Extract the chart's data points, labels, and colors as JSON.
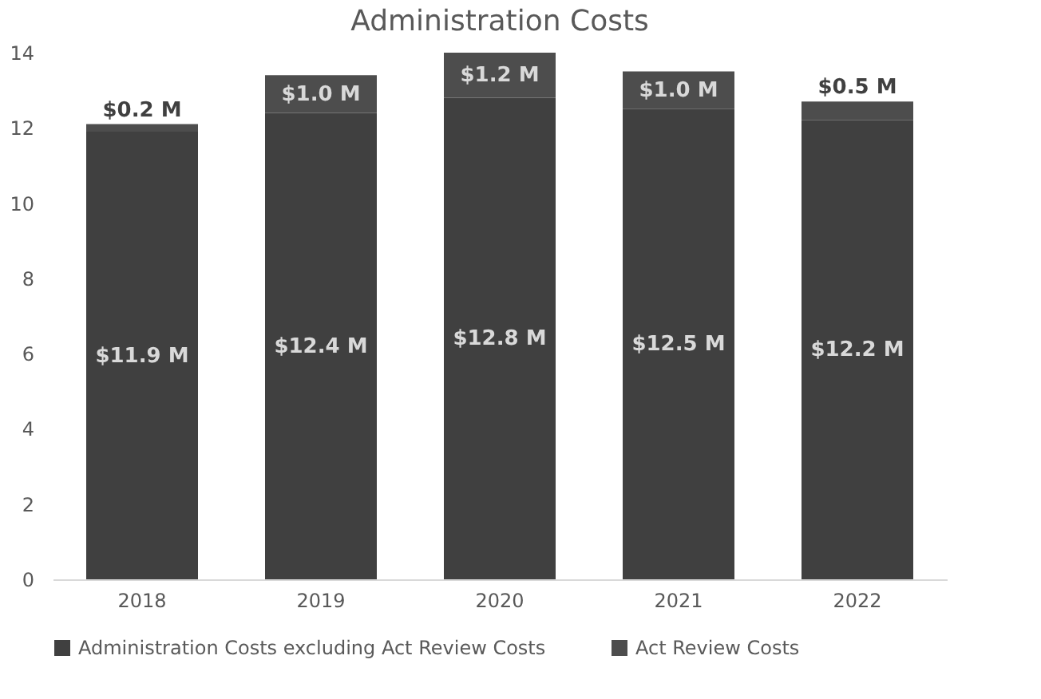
{
  "chart_data": {
    "type": "bar",
    "title": "Administration Costs",
    "stacked": true,
    "categories": [
      "2018",
      "2019",
      "2020",
      "2021",
      "2022"
    ],
    "series": [
      {
        "name": "Administration Costs excluding Act Review Costs",
        "color": "#404040",
        "values": [
          11.9,
          12.4,
          12.8,
          12.5,
          12.2
        ],
        "value_labels": [
          "$11.9 M",
          "$12.4 M",
          "$12.8 M",
          "$12.5 M",
          "$12.2 M"
        ]
      },
      {
        "name": "Act Review Costs",
        "color": "#4d4d4d",
        "values": [
          0.2,
          1.0,
          1.2,
          1.0,
          0.5
        ],
        "value_labels": [
          "$0.2 M",
          "$1.0 M",
          "$1.2 M",
          "$1.0 M",
          "$0.5 M"
        ]
      }
    ],
    "ylim": [
      0,
      14
    ],
    "yticks": [
      0,
      2,
      4,
      6,
      8,
      10,
      12,
      14
    ],
    "grid": false,
    "legend": "bottom"
  }
}
